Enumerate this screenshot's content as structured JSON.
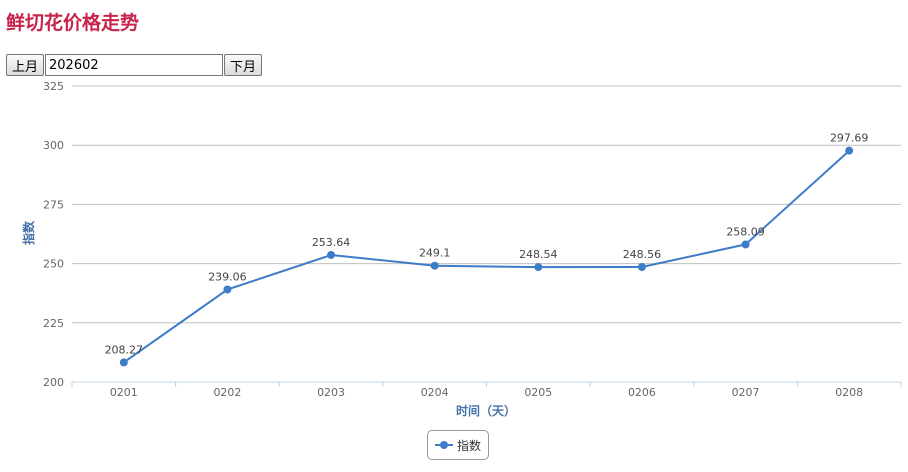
{
  "page": {
    "title": "鲜切花价格走势"
  },
  "controls": {
    "prev_label": "上月",
    "next_label": "下月",
    "month_value": "202602"
  },
  "chart_data": {
    "type": "line",
    "title": "",
    "xlabel": "时间（天）",
    "ylabel": "指数",
    "categories": [
      "0201",
      "0202",
      "0203",
      "0204",
      "0205",
      "0206",
      "0207",
      "0208"
    ],
    "series": [
      {
        "name": "指数",
        "values": [
          208.27,
          239.06,
          253.64,
          249.1,
          248.54,
          248.56,
          258.09,
          297.69
        ]
      }
    ],
    "ylim": [
      200,
      325
    ],
    "yticks": [
      200,
      225,
      250,
      275,
      300,
      325
    ],
    "grid": true,
    "legend": "bottom-center",
    "colors": {
      "series": "#3d7cc9",
      "grid": "#c0c0c0",
      "axis": "#c0d0e0"
    }
  }
}
